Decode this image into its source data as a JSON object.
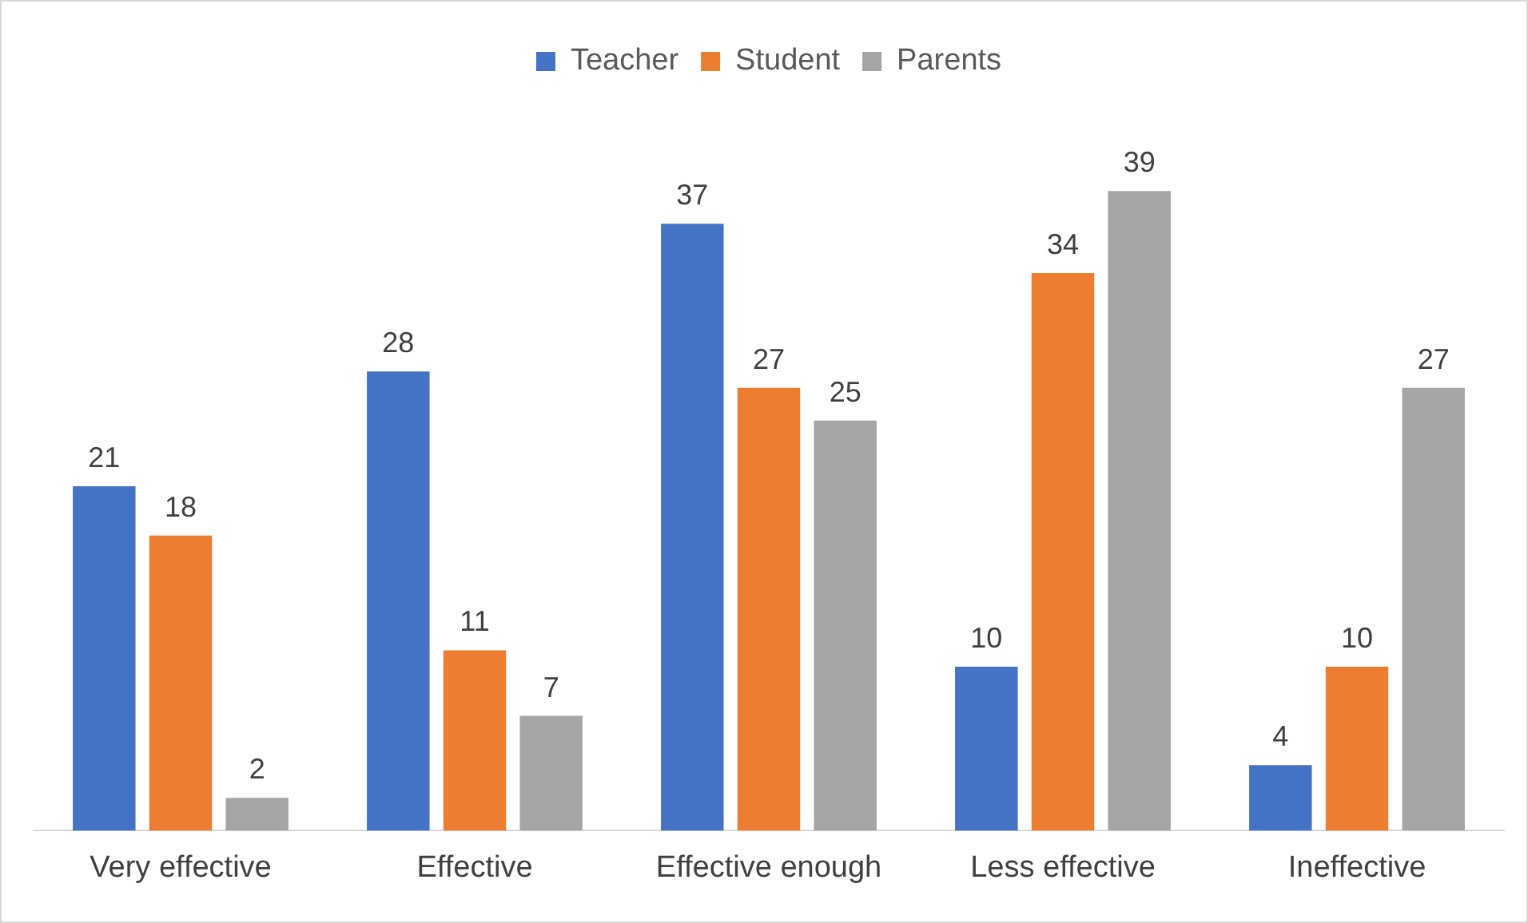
{
  "chart_data": {
    "type": "bar",
    "categories": [
      "Very effective",
      "Effective",
      "Effective enough",
      "Less effective",
      "Ineffective"
    ],
    "series": [
      {
        "name": "Teacher",
        "color": "#4472c4",
        "values": [
          21,
          28,
          37,
          10,
          4
        ]
      },
      {
        "name": "Student",
        "color": "#ed7d31",
        "values": [
          18,
          11,
          27,
          34,
          10
        ]
      },
      {
        "name": "Parents",
        "color": "#a5a5a5",
        "values": [
          2,
          7,
          25,
          39,
          27
        ]
      }
    ],
    "data_labels": true,
    "legend": "top",
    "grid": false
  }
}
